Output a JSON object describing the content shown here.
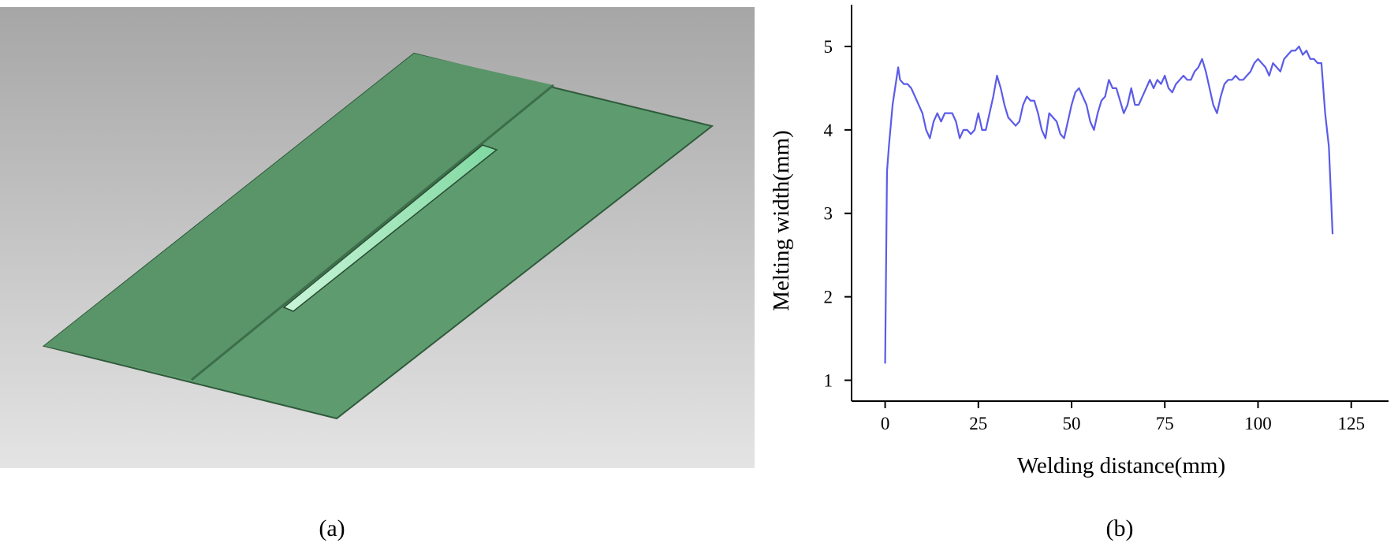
{
  "image_panel": {
    "panel_label": "(a)"
  },
  "chart_data": {
    "type": "line",
    "panel_label": "(b)",
    "xlabel": "Welding distance(mm)",
    "ylabel": "Melting width(mm)",
    "x": [
      0,
      0.5,
      1,
      2,
      3,
      3.5,
      4,
      5,
      6,
      7,
      8,
      9,
      10,
      11,
      12,
      13,
      14,
      15,
      16,
      17,
      18,
      19,
      20,
      21,
      22,
      23,
      24,
      25,
      26,
      27,
      28,
      29,
      30,
      31,
      32,
      33,
      34,
      35,
      36,
      37,
      38,
      39,
      40,
      41,
      42,
      43,
      44,
      45,
      46,
      47,
      48,
      49,
      50,
      51,
      52,
      53,
      54,
      55,
      56,
      57,
      58,
      59,
      60,
      61,
      62,
      63,
      64,
      65,
      66,
      67,
      68,
      69,
      70,
      71,
      72,
      73,
      74,
      75,
      76,
      77,
      78,
      79,
      80,
      81,
      82,
      83,
      84,
      85,
      86,
      87,
      88,
      89,
      90,
      91,
      92,
      93,
      94,
      95,
      96,
      97,
      98,
      99,
      100,
      101,
      102,
      103,
      104,
      105,
      106,
      107,
      108,
      109,
      110,
      111,
      112,
      113,
      114,
      115,
      116,
      117,
      118,
      119,
      120
    ],
    "series": [
      {
        "name": "Melting width",
        "color": "#5b5bea",
        "values": [
          1.2,
          3.5,
          3.8,
          4.3,
          4.6,
          4.75,
          4.6,
          4.55,
          4.55,
          4.5,
          4.4,
          4.3,
          4.2,
          4.0,
          3.9,
          4.1,
          4.2,
          4.1,
          4.2,
          4.2,
          4.2,
          4.1,
          3.9,
          4.0,
          4.0,
          3.95,
          4.0,
          4.2,
          4.0,
          4.0,
          4.2,
          4.4,
          4.65,
          4.5,
          4.3,
          4.15,
          4.1,
          4.05,
          4.1,
          4.3,
          4.4,
          4.35,
          4.35,
          4.2,
          4.0,
          3.9,
          4.2,
          4.15,
          4.1,
          3.95,
          3.9,
          4.1,
          4.3,
          4.45,
          4.5,
          4.4,
          4.3,
          4.1,
          4.0,
          4.2,
          4.35,
          4.4,
          4.6,
          4.5,
          4.5,
          4.35,
          4.2,
          4.3,
          4.5,
          4.3,
          4.3,
          4.4,
          4.5,
          4.6,
          4.5,
          4.6,
          4.55,
          4.65,
          4.5,
          4.45,
          4.55,
          4.6,
          4.65,
          4.6,
          4.6,
          4.7,
          4.75,
          4.85,
          4.7,
          4.5,
          4.3,
          4.2,
          4.4,
          4.55,
          4.6,
          4.6,
          4.65,
          4.6,
          4.6,
          4.65,
          4.7,
          4.8,
          4.85,
          4.8,
          4.75,
          4.65,
          4.8,
          4.75,
          4.7,
          4.85,
          4.9,
          4.95,
          4.95,
          5.0,
          4.9,
          4.95,
          4.85,
          4.85,
          4.8,
          4.8,
          4.2,
          3.8,
          2.75
        ]
      }
    ],
    "xlim": [
      -9,
      135
    ],
    "ylim": [
      0.75,
      5.5
    ],
    "xticks": [
      0,
      25,
      50,
      75,
      100,
      125
    ],
    "yticks": [
      1,
      2,
      3,
      4,
      5
    ]
  }
}
